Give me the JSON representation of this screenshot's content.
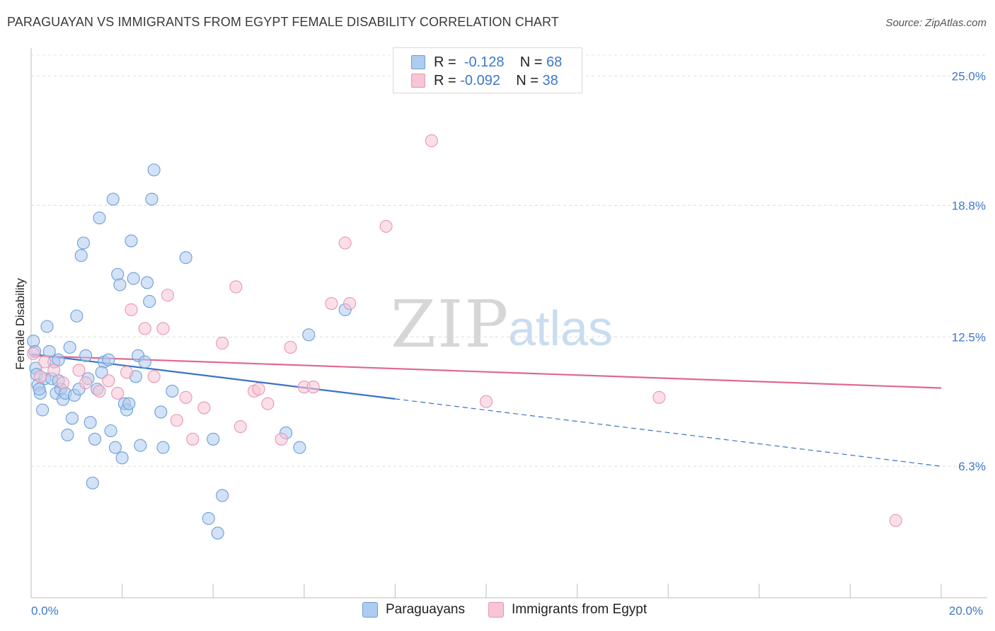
{
  "title": "PARAGUAYAN VS IMMIGRANTS FROM EGYPT FEMALE DISABILITY CORRELATION CHART",
  "source": "Source: ZipAtlas.com",
  "watermark": {
    "zip": "ZIP",
    "atlas": "atlas"
  },
  "legend": {
    "rows": [
      {
        "r_label": "R =",
        "r_value": "-0.128",
        "n_label": "N =",
        "n_value": "68",
        "color": "#aecbf0"
      },
      {
        "r_label": "R =",
        "r_value": "-0.092",
        "n_label": "N =",
        "n_value": "38",
        "color": "#f7c5d5"
      }
    ]
  },
  "bottom_legend": [
    {
      "label": "Paraguayans",
      "color": "#aecbf0"
    },
    {
      "label": "Immigrants from Egypt",
      "color": "#f7c5d5"
    }
  ],
  "chart_data": {
    "type": "scatter",
    "title": "PARAGUAYAN VS IMMIGRANTS FROM EGYPT FEMALE DISABILITY CORRELATION CHART",
    "ylabel": "Female Disability",
    "xlabel": "",
    "xlim": [
      0,
      20
    ],
    "ylim": [
      0,
      26
    ],
    "x_ticks": [
      {
        "value": 0,
        "label": "0.0%"
      },
      {
        "value": 20,
        "label": "20.0%"
      }
    ],
    "y_ticks": [
      {
        "value": 6.3,
        "label": "6.3%"
      },
      {
        "value": 12.5,
        "label": "12.5%"
      },
      {
        "value": 18.8,
        "label": "18.8%"
      },
      {
        "value": 25.0,
        "label": "25.0%"
      }
    ],
    "series": [
      {
        "name": "Paraguayans",
        "color": "#6a9fd8",
        "fill": "#aecbf0",
        "line_color": "#3a72c8",
        "trend": {
          "x0": 0,
          "y0": 11.68,
          "x1": 8.0,
          "y1": 9.53,
          "dash_to_x": 20.0,
          "dash_to_y": 6.3
        },
        "points": [
          [
            0.05,
            12.3
          ],
          [
            0.08,
            11.8
          ],
          [
            0.1,
            11.0
          ],
          [
            0.12,
            10.7
          ],
          [
            0.15,
            10.2
          ],
          [
            0.2,
            9.8
          ],
          [
            0.25,
            9.0
          ],
          [
            0.3,
            10.5
          ],
          [
            0.35,
            13.0
          ],
          [
            0.4,
            11.8
          ],
          [
            0.45,
            10.5
          ],
          [
            0.5,
            11.3
          ],
          [
            0.55,
            9.8
          ],
          [
            0.6,
            11.4
          ],
          [
            0.65,
            10.0
          ],
          [
            0.7,
            9.5
          ],
          [
            0.75,
            9.8
          ],
          [
            0.8,
            7.8
          ],
          [
            0.85,
            12.0
          ],
          [
            0.9,
            8.6
          ],
          [
            0.95,
            9.7
          ],
          [
            1.0,
            13.5
          ],
          [
            1.05,
            10.0
          ],
          [
            1.1,
            16.4
          ],
          [
            1.15,
            17.0
          ],
          [
            1.2,
            11.6
          ],
          [
            1.25,
            10.5
          ],
          [
            1.3,
            8.4
          ],
          [
            1.35,
            5.5
          ],
          [
            1.4,
            7.6
          ],
          [
            1.45,
            10.0
          ],
          [
            1.5,
            18.2
          ],
          [
            1.6,
            11.3
          ],
          [
            1.7,
            11.4
          ],
          [
            1.75,
            8.0
          ],
          [
            1.8,
            19.1
          ],
          [
            1.85,
            7.2
          ],
          [
            1.9,
            15.5
          ],
          [
            1.95,
            15.0
          ],
          [
            2.0,
            6.7
          ],
          [
            2.05,
            9.3
          ],
          [
            2.1,
            9.0
          ],
          [
            2.15,
            9.3
          ],
          [
            2.2,
            17.1
          ],
          [
            2.25,
            15.3
          ],
          [
            2.3,
            10.6
          ],
          [
            2.35,
            11.6
          ],
          [
            2.4,
            7.3
          ],
          [
            2.5,
            11.3
          ],
          [
            2.55,
            15.1
          ],
          [
            2.6,
            14.2
          ],
          [
            2.65,
            19.1
          ],
          [
            2.7,
            20.5
          ],
          [
            2.85,
            8.9
          ],
          [
            3.1,
            9.9
          ],
          [
            3.4,
            16.3
          ],
          [
            3.9,
            3.8
          ],
          [
            4.0,
            7.6
          ],
          [
            4.1,
            3.1
          ],
          [
            4.2,
            4.9
          ],
          [
            5.6,
            7.9
          ],
          [
            5.9,
            7.2
          ],
          [
            6.1,
            12.6
          ],
          [
            6.9,
            13.8
          ],
          [
            0.18,
            10.0
          ],
          [
            0.6,
            10.4
          ],
          [
            1.55,
            10.8
          ],
          [
            2.9,
            7.2
          ]
        ]
      },
      {
        "name": "Immigrants from Egypt",
        "color": "#e896b0",
        "fill": "#f7c5d5",
        "line_color": "#e0688f",
        "trend": {
          "x0": 0,
          "y0": 11.6,
          "x1": 20.0,
          "y1": 10.05
        },
        "points": [
          [
            0.05,
            11.7
          ],
          [
            0.2,
            10.6
          ],
          [
            0.5,
            10.9
          ],
          [
            0.7,
            10.3
          ],
          [
            1.05,
            10.9
          ],
          [
            1.2,
            10.3
          ],
          [
            1.5,
            9.9
          ],
          [
            1.7,
            10.4
          ],
          [
            1.9,
            9.8
          ],
          [
            2.1,
            10.8
          ],
          [
            2.2,
            13.8
          ],
          [
            2.5,
            12.9
          ],
          [
            2.7,
            10.6
          ],
          [
            2.9,
            12.9
          ],
          [
            3.0,
            14.5
          ],
          [
            3.2,
            8.5
          ],
          [
            3.4,
            9.6
          ],
          [
            3.55,
            7.6
          ],
          [
            3.8,
            9.1
          ],
          [
            4.2,
            12.2
          ],
          [
            4.5,
            14.9
          ],
          [
            4.6,
            8.2
          ],
          [
            4.9,
            9.9
          ],
          [
            5.0,
            10.0
          ],
          [
            5.2,
            9.3
          ],
          [
            5.5,
            7.6
          ],
          [
            5.7,
            12.0
          ],
          [
            6.0,
            10.1
          ],
          [
            6.2,
            10.1
          ],
          [
            6.6,
            14.1
          ],
          [
            6.9,
            17.0
          ],
          [
            7.0,
            14.1
          ],
          [
            7.8,
            17.8
          ],
          [
            8.8,
            21.9
          ],
          [
            10.0,
            9.4
          ],
          [
            13.8,
            9.6
          ],
          [
            19.0,
            3.7
          ],
          [
            0.3,
            11.3
          ]
        ]
      }
    ]
  }
}
